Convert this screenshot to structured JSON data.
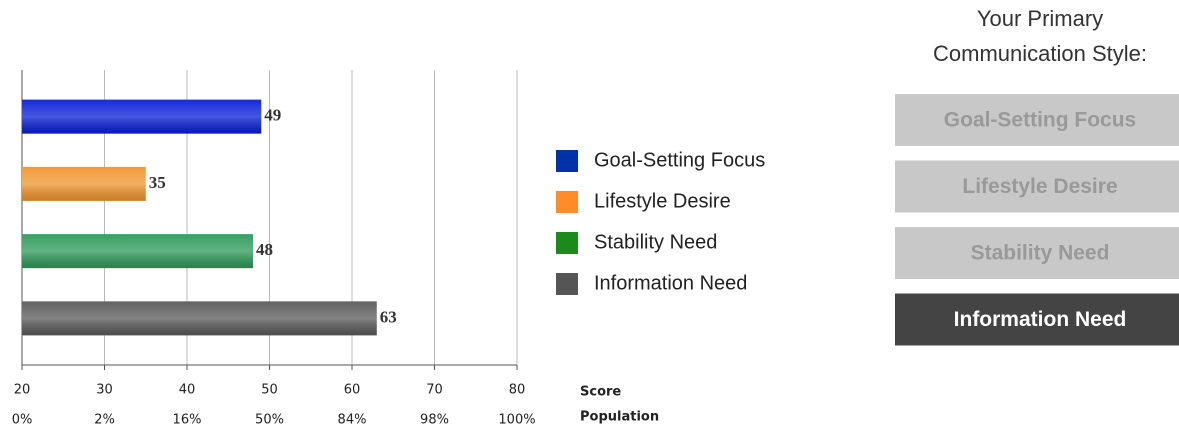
{
  "chart_data": {
    "type": "bar",
    "orientation": "horizontal",
    "series": [
      {
        "name": "Goal-Setting Focus",
        "color": "#0a1fd6",
        "legend_color": "#0033aa",
        "values": [
          49
        ]
      },
      {
        "name": "Lifestyle Desire",
        "color": "#f0952e",
        "legend_color": "#ff8c26",
        "values": [
          35
        ]
      },
      {
        "name": "Stability Need",
        "color": "#2e9a5a",
        "legend_color": "#1a8a1a",
        "values": [
          48
        ]
      },
      {
        "name": "Information Need",
        "color": "#5a5a5a",
        "legend_color": "#555555",
        "values": [
          63
        ]
      }
    ],
    "xlim": [
      20,
      80
    ],
    "xticks": [
      20,
      30,
      40,
      50,
      60,
      70,
      80
    ],
    "x_label": "Score",
    "population_ticks": [
      {
        "value": 20,
        "label": "0%"
      },
      {
        "value": 30,
        "label": "2%"
      },
      {
        "value": 40,
        "label": "16%"
      },
      {
        "value": 50,
        "label": "50%"
      },
      {
        "value": 60,
        "label": "84%"
      },
      {
        "value": 70,
        "label": "98%"
      },
      {
        "value": 80,
        "label": "100%"
      }
    ],
    "population_label": "Population",
    "grid": true,
    "legend": "right"
  },
  "style_panel": {
    "title_lines": [
      "Your Primary",
      "Communication Style:"
    ],
    "selected": 3
  }
}
